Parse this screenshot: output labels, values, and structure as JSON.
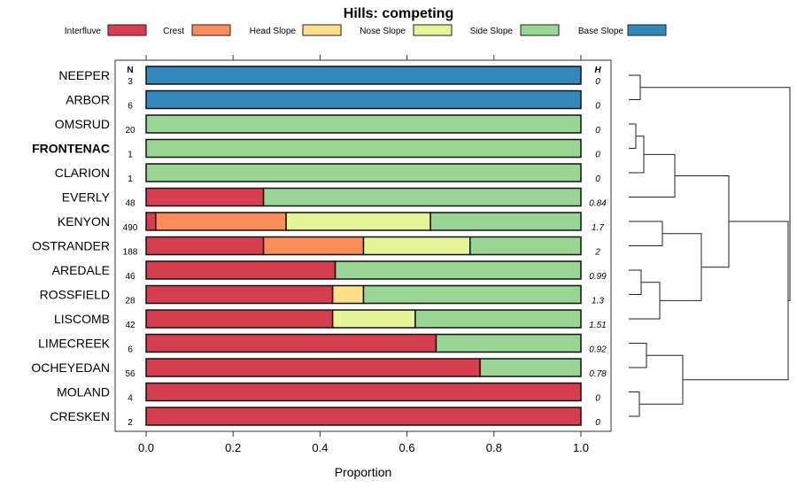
{
  "chart_data": {
    "type": "bar",
    "title": "Hills: competing",
    "xlabel": "Proportion",
    "xlim": [
      0,
      1
    ],
    "xticks": [
      "0.0",
      "0.2",
      "0.4",
      "0.6",
      "0.8",
      "1.0"
    ],
    "n_header": "N",
    "h_header": "H",
    "legend": [
      {
        "name": "Interfluve",
        "color": "#D53E4F"
      },
      {
        "name": "Crest",
        "color": "#FC8D59"
      },
      {
        "name": "Head Slope",
        "color": "#FEE08B"
      },
      {
        "name": "Nose Slope",
        "color": "#E6F598"
      },
      {
        "name": "Side Slope",
        "color": "#99D594"
      },
      {
        "name": "Base Slope",
        "color": "#3288BD"
      }
    ],
    "rows": [
      {
        "label": "NEEPER",
        "n": "3",
        "h": "0",
        "bold": false,
        "values": [
          0,
          0,
          0,
          0,
          0,
          1
        ]
      },
      {
        "label": "ARBOR",
        "n": "6",
        "h": "0",
        "bold": false,
        "values": [
          0,
          0,
          0,
          0,
          0,
          1
        ]
      },
      {
        "label": "OMSRUD",
        "n": "20",
        "h": "0",
        "bold": false,
        "values": [
          0,
          0,
          0,
          0,
          1,
          0
        ]
      },
      {
        "label": "FRONTENAC",
        "n": "1",
        "h": "0",
        "bold": true,
        "values": [
          0,
          0,
          0,
          0,
          1,
          0
        ]
      },
      {
        "label": "CLARION",
        "n": "1",
        "h": "0",
        "bold": false,
        "values": [
          0,
          0,
          0,
          0,
          1,
          0
        ]
      },
      {
        "label": "EVERLY",
        "n": "48",
        "h": "0.84",
        "bold": false,
        "values": [
          0.27,
          0,
          0,
          0,
          0.73,
          0
        ]
      },
      {
        "label": "KENYON",
        "n": "490",
        "h": "1.7",
        "bold": false,
        "values": [
          0.022,
          0.3,
          0,
          0.332,
          0.346,
          0
        ]
      },
      {
        "label": "OSTRANDER",
        "n": "188",
        "h": "2",
        "bold": false,
        "values": [
          0.27,
          0.23,
          0,
          0.245,
          0.255,
          0
        ]
      },
      {
        "label": "AREDALE",
        "n": "46",
        "h": "0.99",
        "bold": false,
        "values": [
          0.435,
          0,
          0,
          0,
          0.565,
          0
        ]
      },
      {
        "label": "ROSSFIELD",
        "n": "28",
        "h": "1.3",
        "bold": false,
        "values": [
          0.429,
          0,
          0.071,
          0,
          0.5,
          0
        ]
      },
      {
        "label": "LISCOMB",
        "n": "42",
        "h": "1.51",
        "bold": false,
        "values": [
          0.429,
          0,
          0,
          0.19,
          0.381,
          0
        ]
      },
      {
        "label": "LIMECREEK",
        "n": "6",
        "h": "0.92",
        "bold": false,
        "values": [
          0.667,
          0,
          0,
          0,
          0.333,
          0
        ]
      },
      {
        "label": "OCHEYEDAN",
        "n": "56",
        "h": "0.78",
        "bold": false,
        "values": [
          0.768,
          0,
          0,
          0,
          0.232,
          0
        ]
      },
      {
        "label": "MOLAND",
        "n": "4",
        "h": "0",
        "bold": false,
        "values": [
          1,
          0,
          0,
          0,
          0,
          0
        ]
      },
      {
        "label": "CRESKEN",
        "n": "2",
        "h": "0",
        "bold": false,
        "values": [
          1,
          0,
          0,
          0,
          0,
          0
        ]
      }
    ]
  }
}
